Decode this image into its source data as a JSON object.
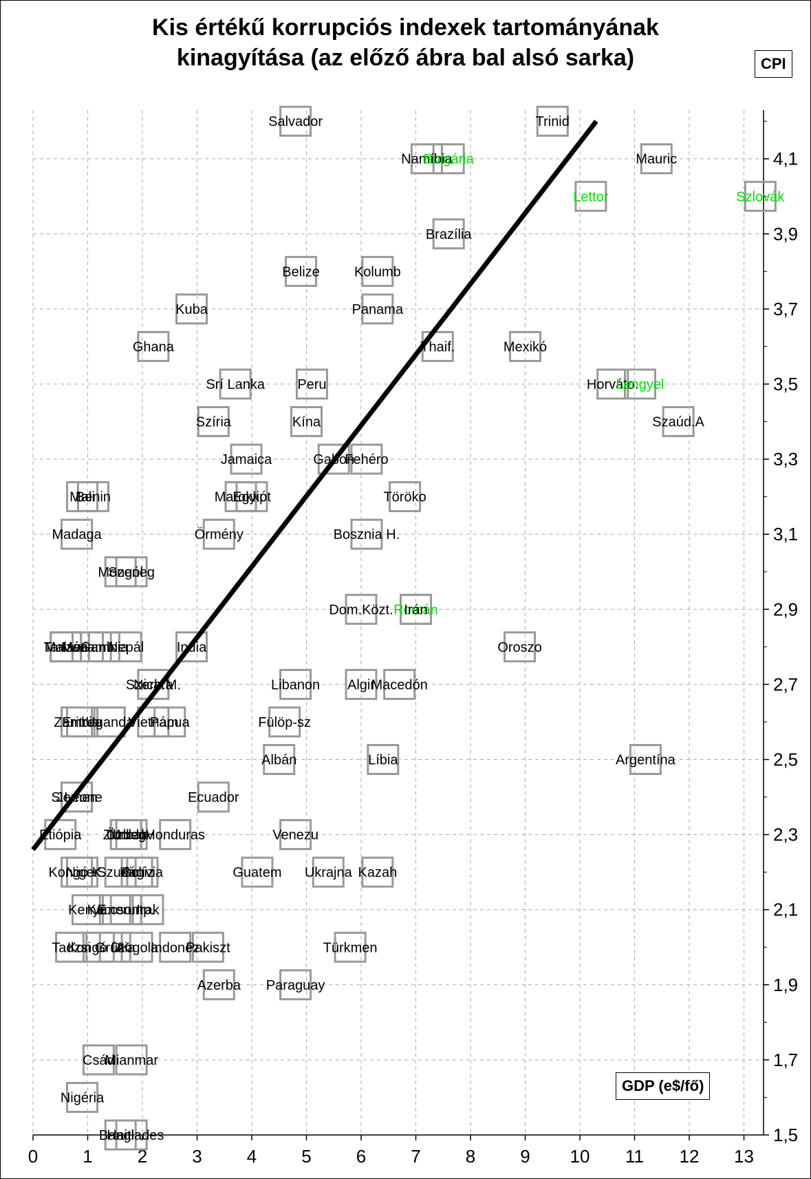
{
  "title_line1": "Kis értékű korrupciós indexek tartományának",
  "title_line2": "kinagyítása (az előző ábra bal alsó sarka)",
  "ylabel": "CPI",
  "xlabel": "GDP (e$/fő)",
  "colors": {
    "marker": "#999999",
    "label": "#000000",
    "highlight": "#00dd00",
    "line": "#000000",
    "grid": "#aaaaaa"
  },
  "chart_data": {
    "type": "scatter",
    "xlabel": "GDP (e$/fő)",
    "ylabel": "CPI",
    "xlim": [
      0,
      13.5
    ],
    "ylim": [
      1.5,
      4.2
    ],
    "xticks": [
      "0",
      "1",
      "2",
      "3",
      "4",
      "5",
      "6",
      "7",
      "8",
      "9",
      "10",
      "11",
      "12",
      "13"
    ],
    "yticks": [
      "1,5",
      "1,7",
      "1,9",
      "2,1",
      "2,3",
      "2,5",
      "2,7",
      "2,9",
      "3,1",
      "3,3",
      "3,5",
      "3,7",
      "3,9",
      "4,1"
    ],
    "grid": true,
    "regression_line": {
      "x": [
        0,
        10.3
      ],
      "y": [
        2.26,
        4.2
      ]
    },
    "points": [
      {
        "name": "Salvador",
        "x": 4.8,
        "y": 4.2
      },
      {
        "name": "Trinid",
        "x": 9.5,
        "y": 4.2
      },
      {
        "name": "Namíbia",
        "x": 7.2,
        "y": 4.1
      },
      {
        "name": "Bulgária",
        "x": 7.6,
        "y": 4.1,
        "highlight": true
      },
      {
        "name": "Mauric",
        "x": 11.4,
        "y": 4.1
      },
      {
        "name": "Lettor",
        "x": 10.2,
        "y": 4.0,
        "highlight": true
      },
      {
        "name": "Szlovák",
        "x": 13.3,
        "y": 4.0,
        "highlight": true
      },
      {
        "name": "Brazília",
        "x": 7.6,
        "y": 3.9
      },
      {
        "name": "Belize",
        "x": 4.9,
        "y": 3.8
      },
      {
        "name": "Kolumb",
        "x": 6.3,
        "y": 3.8
      },
      {
        "name": "Kuba",
        "x": 2.9,
        "y": 3.7
      },
      {
        "name": "Panama",
        "x": 6.3,
        "y": 3.7
      },
      {
        "name": "Ghana",
        "x": 2.2,
        "y": 3.6
      },
      {
        "name": "Thaif.",
        "x": 7.4,
        "y": 3.6
      },
      {
        "name": "Mexikó",
        "x": 9.0,
        "y": 3.6
      },
      {
        "name": "Srí Lanka",
        "x": 3.7,
        "y": 3.5
      },
      {
        "name": "Peru",
        "x": 5.1,
        "y": 3.5
      },
      {
        "name": "Horváto.",
        "x": 10.6,
        "y": 3.5
      },
      {
        "name": "Lengyel",
        "x": 11.1,
        "y": 3.5,
        "highlight": true
      },
      {
        "name": "Szíria",
        "x": 3.3,
        "y": 3.4
      },
      {
        "name": "Kína",
        "x": 5.0,
        "y": 3.4
      },
      {
        "name": "Szaúd.A",
        "x": 11.8,
        "y": 3.4
      },
      {
        "name": "Jamaica",
        "x": 3.9,
        "y": 3.3
      },
      {
        "name": "Gabon",
        "x": 5.5,
        "y": 3.3
      },
      {
        "name": "Fehéro",
        "x": 6.1,
        "y": 3.3
      },
      {
        "name": "Mali",
        "x": 0.9,
        "y": 3.2
      },
      {
        "name": "Benin",
        "x": 1.1,
        "y": 3.2
      },
      {
        "name": "Marokkó",
        "x": 3.8,
        "y": 3.2
      },
      {
        "name": "Egyipt",
        "x": 4.0,
        "y": 3.2
      },
      {
        "name": "Töröko",
        "x": 6.8,
        "y": 3.2
      },
      {
        "name": "Madaga",
        "x": 0.8,
        "y": 3.1
      },
      {
        "name": "Örmény",
        "x": 3.4,
        "y": 3.1
      },
      {
        "name": "Bosznia H.",
        "x": 6.1,
        "y": 3.1
      },
      {
        "name": "Mongól",
        "x": 1.6,
        "y": 3.0
      },
      {
        "name": "Szeneg",
        "x": 1.8,
        "y": 3.0
      },
      {
        "name": "Román",
        "x": 7.0,
        "y": 2.9,
        "highlight": true
      },
      {
        "name": "Dom.Közt.",
        "x": 6.0,
        "y": 2.9
      },
      {
        "name": "Irán",
        "x": 7.0,
        "y": 2.9
      },
      {
        "name": "Malawi",
        "x": 0.6,
        "y": 2.8
      },
      {
        "name": "Tanzán",
        "x": 0.6,
        "y": 2.8
      },
      {
        "name": "Gambia",
        "x": 1.3,
        "y": 2.8
      },
      {
        "name": "Nepál",
        "x": 1.7,
        "y": 2.8
      },
      {
        "name": "India",
        "x": 2.9,
        "y": 2.8
      },
      {
        "name": "Oroszo",
        "x": 8.9,
        "y": 2.8
      },
      {
        "name": "Mozamb",
        "x": 1.0,
        "y": 2.8
      },
      {
        "name": "Algir",
        "x": 6.0,
        "y": 2.7
      },
      {
        "name": "Szerb.M.",
        "x": 2.2,
        "y": 2.7
      },
      {
        "name": "Nicara",
        "x": 2.2,
        "y": 2.7
      },
      {
        "name": "Libanon",
        "x": 4.8,
        "y": 2.7
      },
      {
        "name": "Macedón",
        "x": 6.7,
        "y": 2.7
      },
      {
        "name": "Zambia",
        "x": 0.8,
        "y": 2.6
      },
      {
        "name": "Eritrea",
        "x": 0.9,
        "y": 2.6
      },
      {
        "name": "Uganda",
        "x": 1.4,
        "y": 2.6
      },
      {
        "name": "Vietnam",
        "x": 2.2,
        "y": 2.6
      },
      {
        "name": "Pápua",
        "x": 2.5,
        "y": 2.6
      },
      {
        "name": "Fülöp-sz",
        "x": 4.6,
        "y": 2.6
      },
      {
        "name": "Albán",
        "x": 4.5,
        "y": 2.5
      },
      {
        "name": "Líbia",
        "x": 6.4,
        "y": 2.5
      },
      {
        "name": "Argentína",
        "x": 11.2,
        "y": 2.5
      },
      {
        "name": "S.Leone",
        "x": 0.8,
        "y": 2.4
      },
      {
        "name": "Jemen",
        "x": 0.8,
        "y": 2.4
      },
      {
        "name": "Ecuador",
        "x": 3.3,
        "y": 2.4
      },
      {
        "name": "Zimbab",
        "x": 1.7,
        "y": 2.3
      },
      {
        "name": "Etiópia",
        "x": 0.5,
        "y": 2.3
      },
      {
        "name": "Moldov",
        "x": 1.8,
        "y": 2.3
      },
      {
        "name": "Honduras",
        "x": 2.6,
        "y": 2.3
      },
      {
        "name": "Venezu",
        "x": 4.8,
        "y": 2.3
      },
      {
        "name": "Üzbeg",
        "x": 1.7,
        "y": 2.3
      },
      {
        "name": "Kongó K.",
        "x": 0.8,
        "y": 2.2
      },
      {
        "name": "Niger",
        "x": 0.9,
        "y": 2.2
      },
      {
        "name": "Szudán",
        "x": 1.6,
        "y": 2.2
      },
      {
        "name": "Kirgiz",
        "x": 1.9,
        "y": 2.2
      },
      {
        "name": "Guatem",
        "x": 4.1,
        "y": 2.2
      },
      {
        "name": "Kazah",
        "x": 6.3,
        "y": 2.2
      },
      {
        "name": "Ukrajna",
        "x": 5.4,
        "y": 2.2
      },
      {
        "name": "Bolívia",
        "x": 2.0,
        "y": 2.2
      },
      {
        "name": "Kenya",
        "x": 1.0,
        "y": 2.1
      },
      {
        "name": "Kamerun",
        "x": 1.5,
        "y": 2.1
      },
      {
        "name": "E.csontp.",
        "x": 1.7,
        "y": 2.1
      },
      {
        "name": "Irak",
        "x": 2.1,
        "y": 2.1
      },
      {
        "name": "Pakiszt",
        "x": 3.2,
        "y": 2.0
      },
      {
        "name": "Angola",
        "x": 1.9,
        "y": 2.0
      },
      {
        "name": "Indonéz",
        "x": 2.6,
        "y": 2.0
      },
      {
        "name": "Türkmen",
        "x": 5.8,
        "y": 2.0
      },
      {
        "name": "Tadzsi",
        "x": 0.7,
        "y": 2.0
      },
      {
        "name": "Kongó DK",
        "x": 1.2,
        "y": 2.0
      },
      {
        "name": "Grúzia",
        "x": 1.5,
        "y": 2.0
      },
      {
        "name": "Azerba",
        "x": 3.4,
        "y": 1.9
      },
      {
        "name": "Paraguay",
        "x": 4.8,
        "y": 1.9
      },
      {
        "name": "Csád",
        "x": 1.2,
        "y": 1.7
      },
      {
        "name": "Mianmar",
        "x": 1.8,
        "y": 1.7
      },
      {
        "name": "Nigéria",
        "x": 0.9,
        "y": 1.6
      },
      {
        "name": "Haiti",
        "x": 1.6,
        "y": 1.5
      },
      {
        "name": "Banglades",
        "x": 1.8,
        "y": 1.5
      }
    ]
  }
}
